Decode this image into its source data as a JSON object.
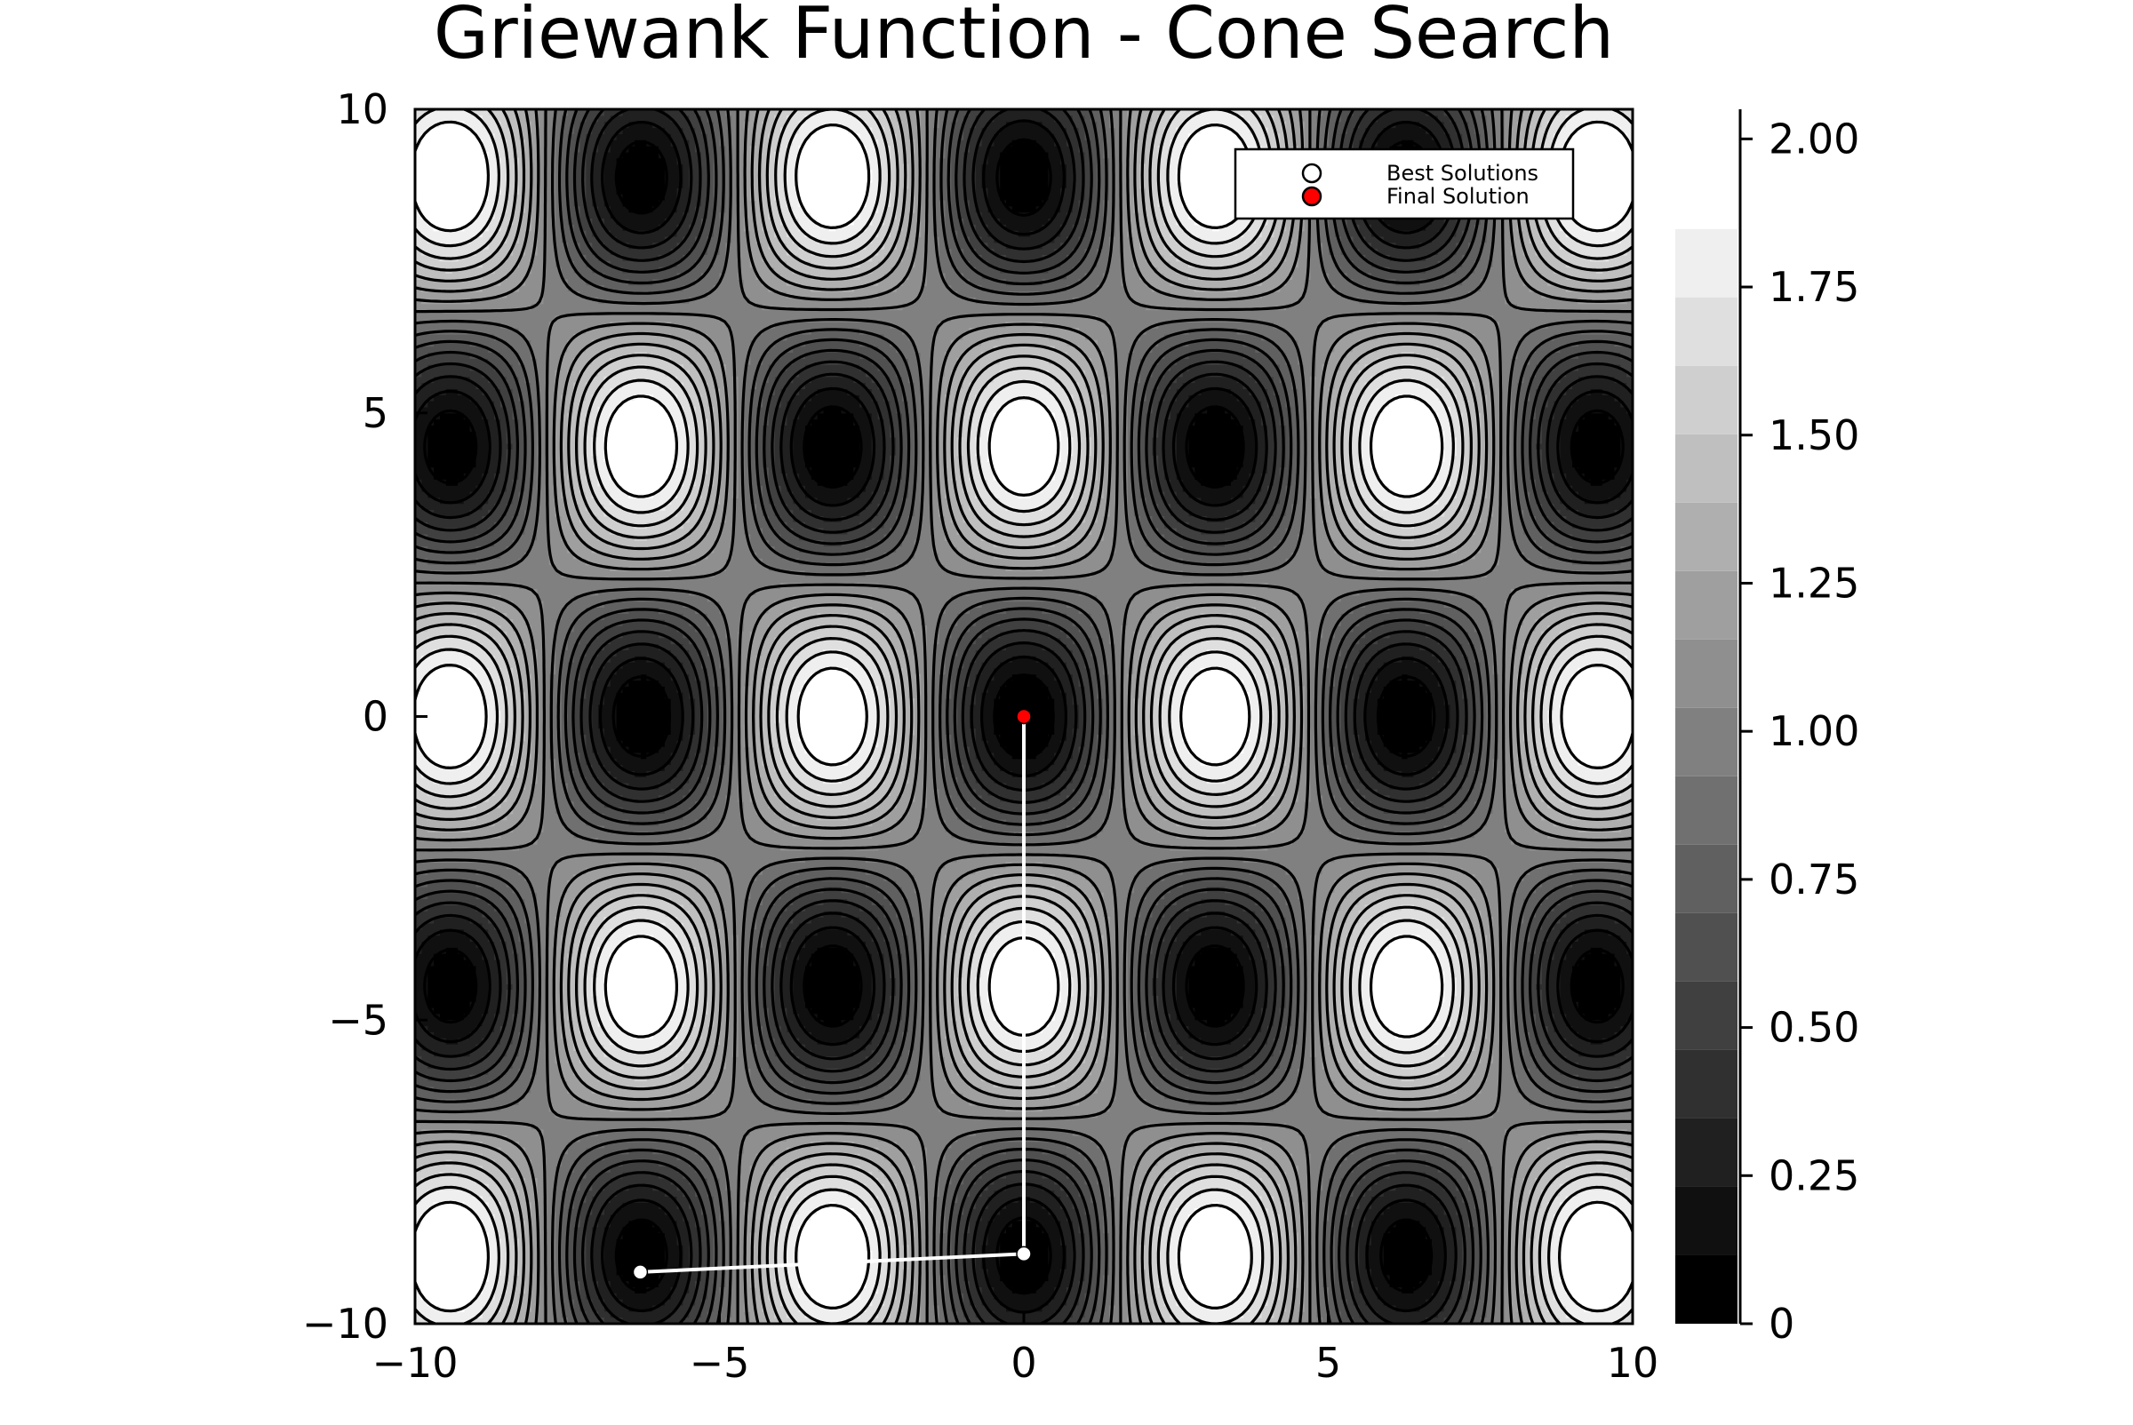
{
  "chart_data": {
    "type": "contour",
    "title": "Griewank Function - Cone Search",
    "xlabel": "",
    "ylabel": "",
    "xlim": [
      -10,
      10
    ],
    "ylim": [
      -10,
      10
    ],
    "x_ticks": [
      -10,
      -5,
      0,
      5,
      10
    ],
    "y_ticks": [
      -10,
      -5,
      0,
      5,
      10
    ],
    "x_tick_labels": [
      "−10",
      "−5",
      "0",
      "5",
      "10"
    ],
    "y_tick_labels": [
      "−10",
      "−5",
      "0",
      "5",
      "10"
    ],
    "function": "1 + (x^2 + y^2)/4000 - cos(x)*cos(y/sqrt(2))",
    "colormap": "grayscale",
    "colorbar": {
      "range": [
        0,
        2.05
      ],
      "levels": [
        0,
        0.1155,
        0.231,
        0.3465,
        0.462,
        0.5775,
        0.693,
        0.8085,
        0.924,
        1.0395,
        1.155,
        1.2705,
        1.386,
        1.5015,
        1.617,
        1.7325,
        1.848
      ],
      "ticks": [
        0,
        0.25,
        0.5,
        0.75,
        1.0,
        1.25,
        1.5,
        1.75,
        2.0
      ],
      "tick_labels": [
        "0",
        "0.25",
        "0.50",
        "0.75",
        "1.00",
        "1.25",
        "1.50",
        "1.75",
        "2.00"
      ]
    },
    "grid": false,
    "legend_position": "top-right",
    "series": [
      {
        "name": "Best Solutions",
        "type": "line+scatter",
        "color": "#ffffff",
        "x": [
          -6.3,
          0.0,
          0.0
        ],
        "y": [
          -9.15,
          -8.85,
          0.0
        ]
      },
      {
        "name": "Final Solution",
        "type": "scatter",
        "color": "#ff0000",
        "x": [
          0.0
        ],
        "y": [
          0.0
        ]
      }
    ]
  }
}
